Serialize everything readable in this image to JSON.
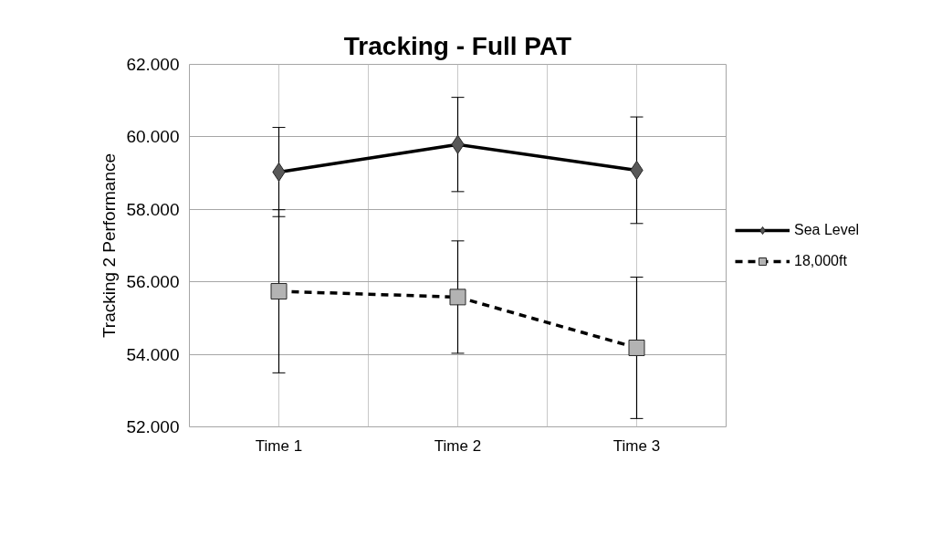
{
  "chart_data": {
    "type": "line",
    "title": "Tracking - Full PAT",
    "ylabel": "Tracking 2 Performance",
    "categories": [
      "Time 1",
      "Time 2",
      "Time 3"
    ],
    "series": [
      {
        "name": "Sea Level",
        "color": "#595959",
        "marker": "diamond",
        "line_style": "solid",
        "values": [
          59.03,
          59.79,
          59.08
        ],
        "errors": [
          1.23,
          1.3,
          1.47
        ]
      },
      {
        "name": "18,000ft",
        "color": "#b3b3b3",
        "marker": "square",
        "line_style": "dashed",
        "values": [
          55.74,
          55.58,
          54.18
        ],
        "errors": [
          2.25,
          1.55,
          1.95
        ]
      }
    ],
    "ylim": [
      52,
      62
    ],
    "yticks": [
      {
        "value": 52,
        "label": "52.000"
      },
      {
        "value": 54,
        "label": "54.000"
      },
      {
        "value": 56,
        "label": "56.000"
      },
      {
        "value": 58,
        "label": "58.000"
      },
      {
        "value": 60,
        "label": "60.000"
      },
      {
        "value": 62,
        "label": "62.000"
      }
    ],
    "grid": true,
    "legend": "right"
  }
}
